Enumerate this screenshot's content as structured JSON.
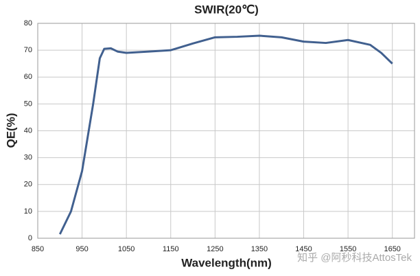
{
  "chart_data": {
    "type": "line",
    "title": "SWIR(20℃)",
    "x_label": "Wavelength(nm)",
    "y_label": "QE(%)",
    "x": [
      900,
      925,
      950,
      975,
      990,
      1000,
      1015,
      1030,
      1050,
      1100,
      1150,
      1200,
      1250,
      1300,
      1350,
      1400,
      1450,
      1500,
      1550,
      1600,
      1625,
      1650
    ],
    "series": [
      {
        "name": "SWIR",
        "color": "#41608f",
        "values": [
          1.5,
          10,
          25,
          50,
          67,
          70.5,
          70.7,
          69.5,
          69,
          69.5,
          70,
          72.5,
          74.8,
          75,
          75.4,
          74.8,
          73.2,
          72.7,
          73.8,
          72,
          69,
          65
        ]
      }
    ],
    "xlim": [
      850,
      1700
    ],
    "xticks": [
      850,
      950,
      1050,
      1150,
      1250,
      1350,
      1450,
      1550,
      1650
    ],
    "ylim": [
      0,
      80
    ],
    "yticks": [
      0,
      10,
      20,
      30,
      40,
      50,
      60,
      70,
      80
    ],
    "grid": true,
    "watermark": "知乎 @阿秒科技AttosTek"
  }
}
